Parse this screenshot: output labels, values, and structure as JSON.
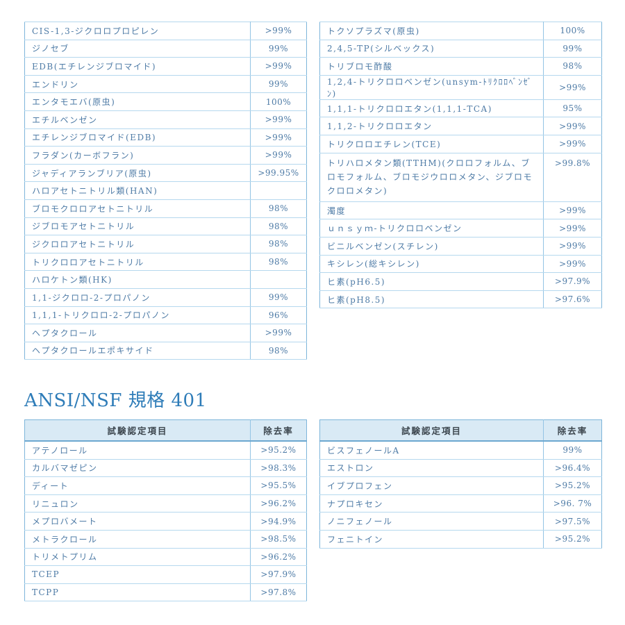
{
  "colors": {
    "text_blue": "#4e7ba6",
    "heading_blue": "#2e7cb8",
    "border_outer": "#7db5da",
    "border_inner": "#b5d8ee",
    "border_divider": "#93c4e4",
    "header_bg": "#d9eaf5",
    "header_text": "#3c464e",
    "header_underline": "#6ca7d0",
    "page_bg": "#ffffff"
  },
  "section2_heading": "ANSI/NSF 規格 401",
  "tables": {
    "top_left": {
      "rows": [
        {
          "label": "CIS-1,3-ジクロロプロピレン",
          "value": ">99%"
        },
        {
          "label": "ジノセブ",
          "value": "99%"
        },
        {
          "label": "EDB(エチレンジブロマイド)",
          "value": ">99%"
        },
        {
          "label": "エンドリン",
          "value": "99%"
        },
        {
          "label": "エンタモエバ(原虫)",
          "value": "100%"
        },
        {
          "label": "エチルベンゼン",
          "value": ">99%"
        },
        {
          "label": "エチレンジブロマイド(EDB)",
          "value": ">99%"
        },
        {
          "label": "フラダン(カーボフラン)",
          "value": ">99%"
        },
        {
          "label": "ジャディアランブリア(原虫)",
          "value": ">99.95%"
        },
        {
          "label": "ハロアセトニトリル類(HAN)",
          "value": ""
        },
        {
          "label": "ブロモクロロアセトニトリル",
          "value": "98%"
        },
        {
          "label": "ジブロモアセトニトリル",
          "value": "98%"
        },
        {
          "label": "ジクロロアセトニトリル",
          "value": "98%"
        },
        {
          "label": "トリクロロアセトニトリル",
          "value": "98%"
        },
        {
          "label": "ハロケトン類(HK)",
          "value": ""
        },
        {
          "label": "1,1-ジクロロ-2-プロパノン",
          "value": "99%"
        },
        {
          "label": "1,1,1-トリクロロ-2-プロパノン",
          "value": "96%"
        },
        {
          "label": "ヘプタクロール",
          "value": ">99%"
        },
        {
          "label": "ヘプタクロールエポキサイド",
          "value": "98%"
        }
      ]
    },
    "top_right": {
      "rows": [
        {
          "label": "トクソプラズマ(原虫)",
          "value": "100%"
        },
        {
          "label": "2,4,5-TP(シルベックス)",
          "value": "99%"
        },
        {
          "label": "トリブロモ酢酸",
          "value": "98%"
        },
        {
          "label": "1,2,4-トリクロロベンゼン(unsym-ﾄﾘｸﾛﾛﾍﾞﾝｾﾞﾝ)",
          "value": ">99%"
        },
        {
          "label": "1,1,1-トリクロロエタン(1,1,1-TCA)",
          "value": "95%"
        },
        {
          "label": "1,1,2-トリクロロエタン",
          "value": ">99%"
        },
        {
          "label": "トリクロロエチレン(TCE)",
          "value": ">99%"
        },
        {
          "label": "トリハロメタン類(TTHM)(クロロフォルム、ブロモフォルム、ブロモジウロロメタン、ジブロモクロロメタン)",
          "value": ">99.8%",
          "tall": true
        },
        {
          "label": "濁度",
          "value": ">99%"
        },
        {
          "label": "ｕｎｓｙｍ-トリクロロベンゼン",
          "value": ">99%"
        },
        {
          "label": "ビニルベンゼン(スチレン)",
          "value": ">99%"
        },
        {
          "label": "キシレン(総キシレン)",
          "value": ">99%"
        },
        {
          "label": "ヒ素(pH6.5)",
          "value": ">97.9%"
        },
        {
          "label": "ヒ素(pH8.5)",
          "value": ">97.6%"
        }
      ]
    },
    "bottom_left": {
      "headers": [
        "試験認定項目",
        "除去率"
      ],
      "rows": [
        {
          "label": "アテノロール",
          "value": ">95.2%"
        },
        {
          "label": "カルバマゼピン",
          "value": ">98.3%"
        },
        {
          "label": "ディート",
          "value": ">95.5%"
        },
        {
          "label": "リニュロン",
          "value": ">96.2%"
        },
        {
          "label": "メプロバメート",
          "value": ">94.9%"
        },
        {
          "label": "メトラクロール",
          "value": ">98.5%"
        },
        {
          "label": "トリメトプリム",
          "value": ">96.2%"
        },
        {
          "label": "TCEP",
          "value": ">97.9%"
        },
        {
          "label": "TCPP",
          "value": ">97.8%"
        }
      ]
    },
    "bottom_right": {
      "headers": [
        "試験認定項目",
        "除去率"
      ],
      "rows": [
        {
          "label": "ビスフェノールA",
          "value": "99%"
        },
        {
          "label": "エストロン",
          "value": ">96.4%"
        },
        {
          "label": "イブプロフェン",
          "value": ">95.2%"
        },
        {
          "label": "ナプロキセン",
          "value": ">96. 7%"
        },
        {
          "label": "ノニフェノール",
          "value": ">97.5%"
        },
        {
          "label": "フェニトイン",
          "value": ">95.2%"
        }
      ]
    }
  }
}
